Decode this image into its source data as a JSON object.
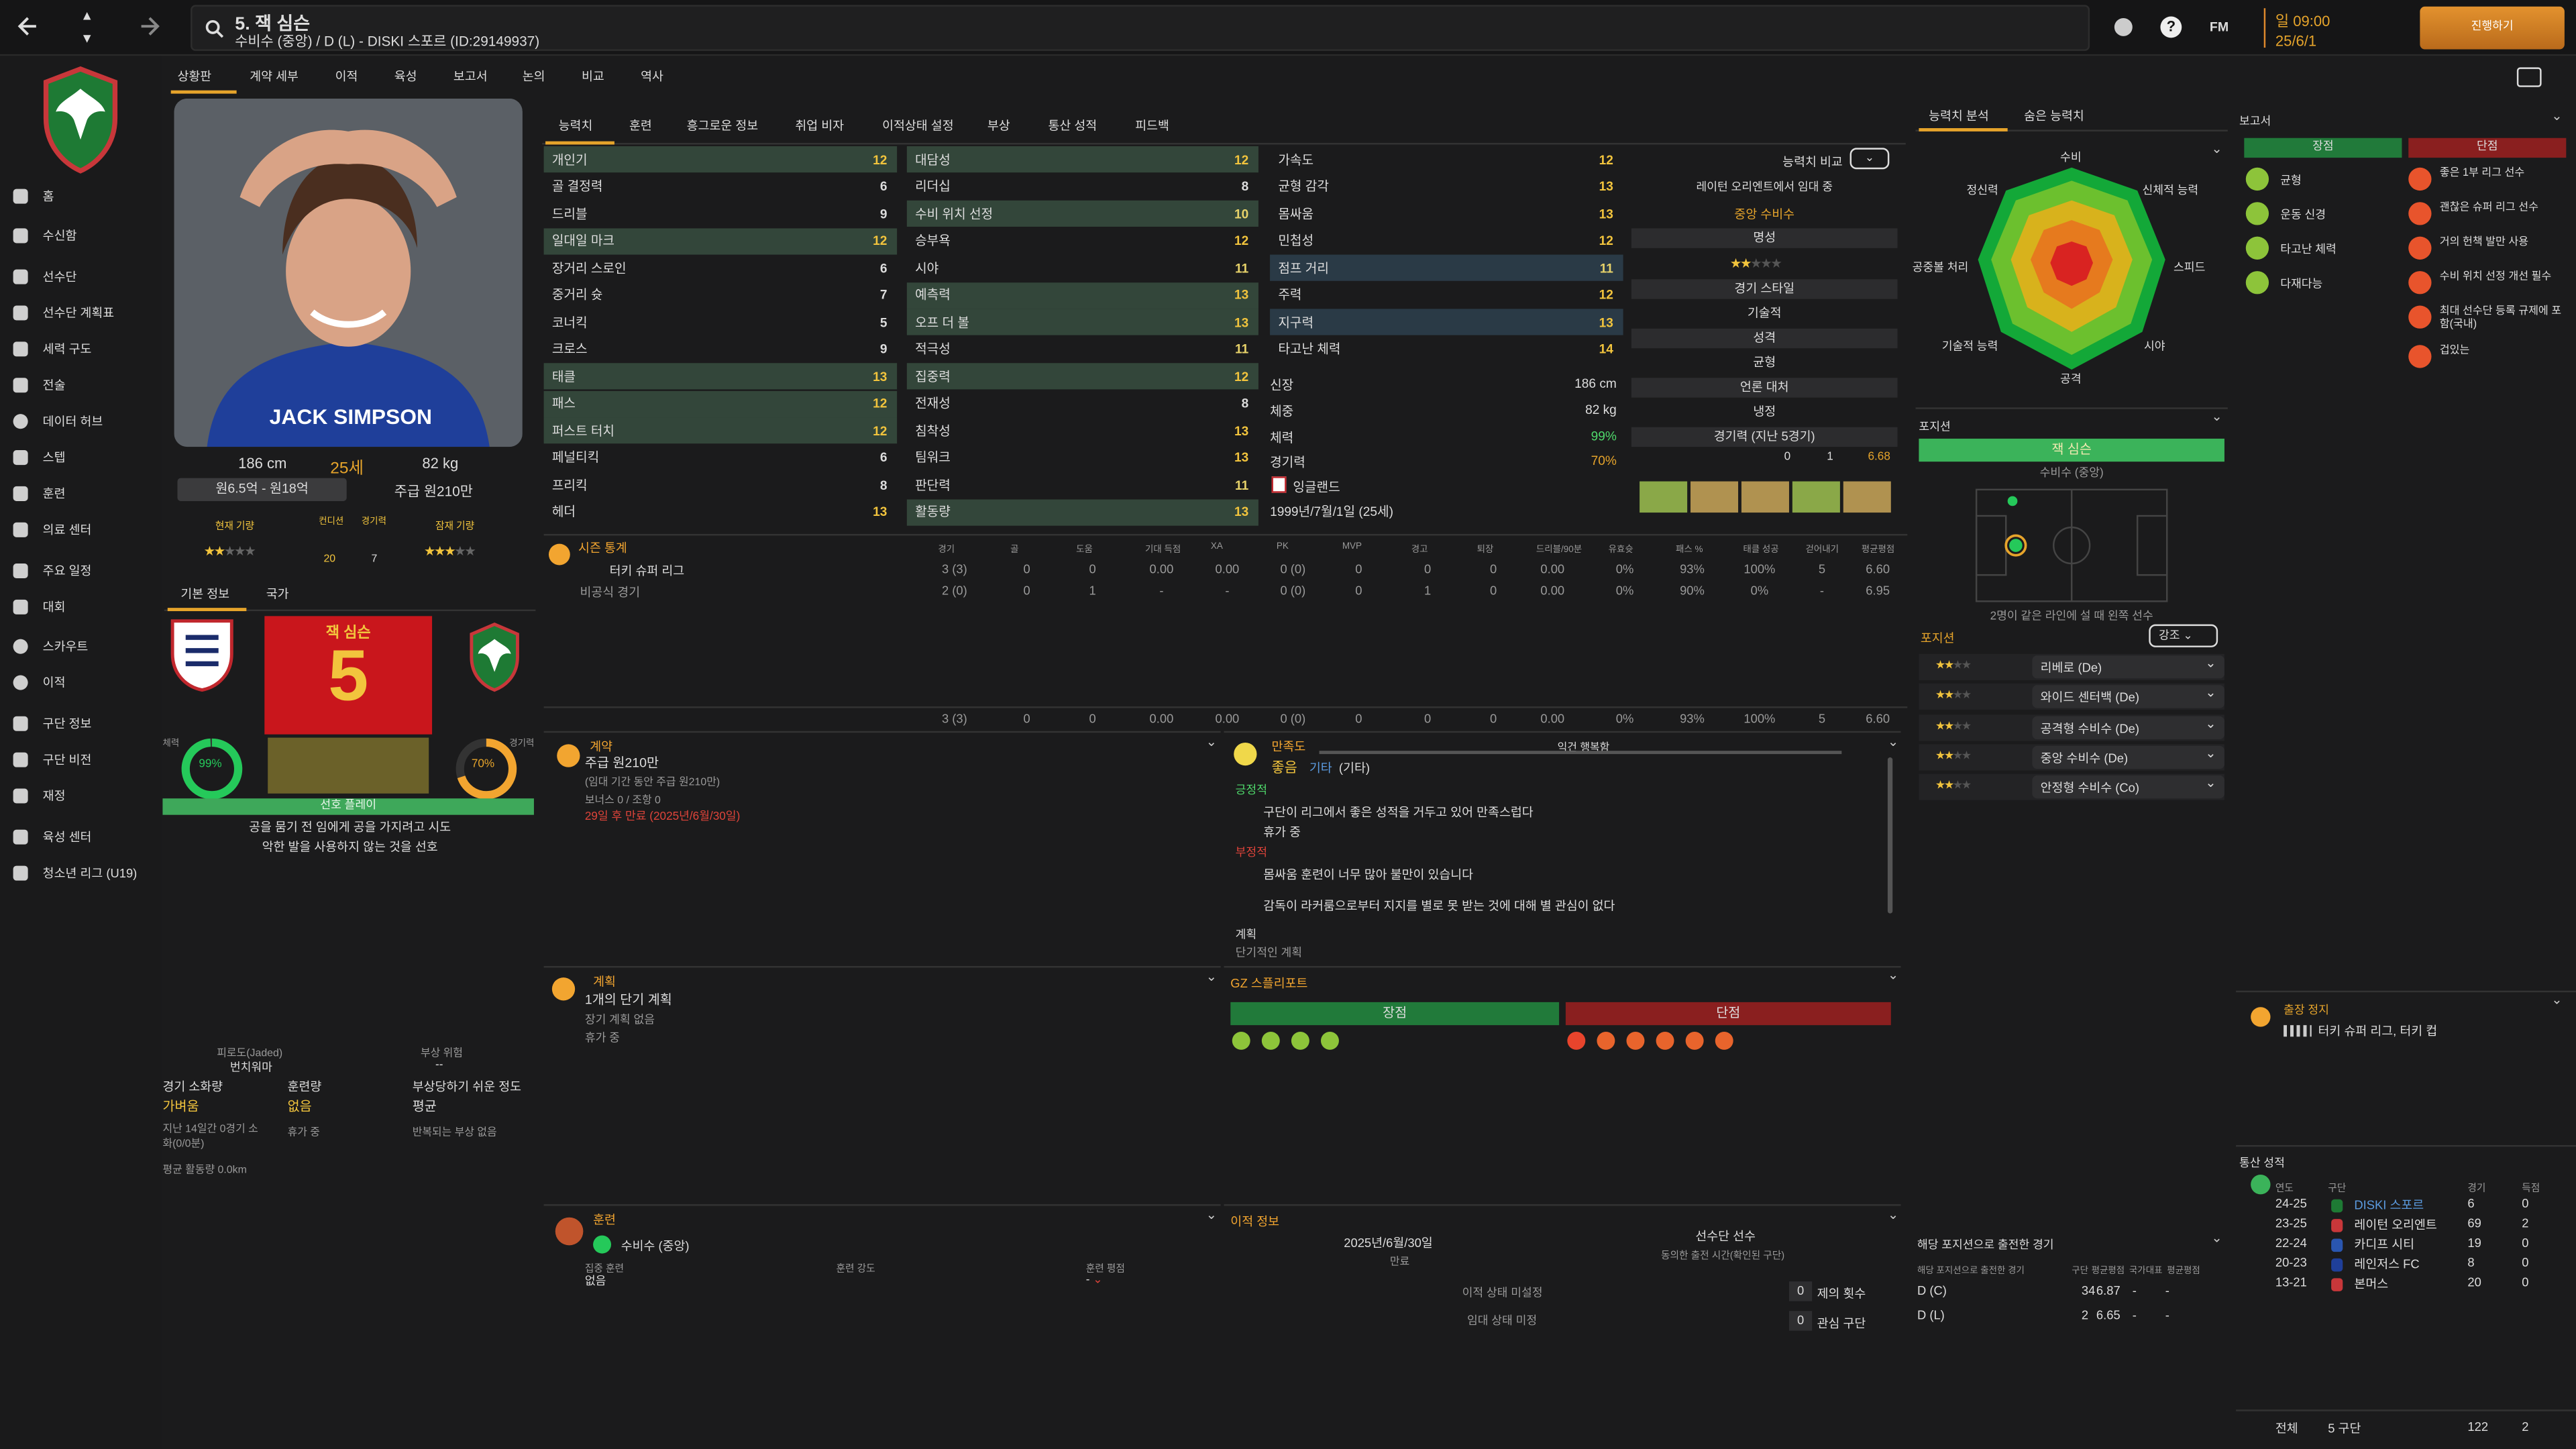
{
  "header": {
    "player_title": "5. 잭 심슨",
    "player_sub": "수비수 (중앙) / D (L) - DISKI 스포르 (ID:29149937)",
    "time": "일 09:00",
    "date": "25/6/1",
    "continue_label": "진행하기",
    "fm_label": "FM"
  },
  "sidebar": {
    "items": [
      {
        "label": "홈"
      },
      {
        "label": "수신함"
      },
      {
        "label": "선수단"
      },
      {
        "label": "선수단 계획표"
      },
      {
        "label": "세력 구도"
      },
      {
        "label": "전술"
      },
      {
        "label": "데이터 허브"
      },
      {
        "label": "스텝"
      },
      {
        "label": "훈련"
      },
      {
        "label": "의료 센터"
      },
      {
        "label": "주요 일정"
      },
      {
        "label": "대회"
      },
      {
        "label": "스카우트"
      },
      {
        "label": "이적"
      },
      {
        "label": "구단 정보"
      },
      {
        "label": "구단 비전"
      },
      {
        "label": "재정"
      },
      {
        "label": "육성 센터"
      },
      {
        "label": "청소년 리그 (U19)"
      }
    ]
  },
  "subnav": [
    "상황판",
    "계약 세부",
    "이적",
    "육성",
    "보고서",
    "논의",
    "비교",
    "역사"
  ],
  "profile": {
    "height": "186 cm",
    "age": "25세",
    "weight": "82 kg",
    "value": "원6.5억 - 원18억",
    "wage": "주급 원210만",
    "cur_ability": "현재 기량",
    "condition": "컨디션",
    "sharp": "경기력",
    "potential": "잠재 기량",
    "stat1": "20",
    "stat2": "7",
    "shirt_name": "JACK SIMPSON",
    "tabs": [
      "기본 정보",
      "국가"
    ],
    "kit_name": "잭 심슨",
    "kit_num": "5",
    "fitness": "99%",
    "match_sharp": "70%",
    "fit_label": "체력",
    "sharp_label": "경기력",
    "status_bar": "선호 플레이",
    "pref1": "공을 뭄기 전 임에게 공을 가지려고 시도",
    "pref2": "악한 발을 사용하지 않는 것을 선호",
    "jaded_label": "피로도(Jaded)",
    "jaded_val": "번치워마",
    "injury_label": "부상 위험",
    "injury_val": "--",
    "t1": "경기 소화량",
    "t1v": "가벼움",
    "t1s": "지난 14일간 0경기 소화(0/0분)",
    "t1s2": "평균 활동량 0.0km",
    "t2": "훈련량",
    "t2v": "없음",
    "t2s": "휴가 중",
    "t3": "부상당하기 쉬운 정도",
    "t3v": "평균",
    "t3s": "반복되는 부상 없음"
  },
  "tabs": [
    "능력치",
    "훈련",
    "흥그로운 정보",
    "취업 비자",
    "이적상태 설정",
    "부상",
    "통산 성적",
    "피드백"
  ],
  "attributes": {
    "col1": [
      [
        "개인기",
        "12"
      ],
      [
        "골 결정력",
        "6"
      ],
      [
        "드리블",
        "9"
      ],
      [
        "일대일 마크",
        "12"
      ],
      [
        "장거리 스로인",
        "6"
      ],
      [
        "중거리 슛",
        "7"
      ],
      [
        "코너킥",
        "5"
      ],
      [
        "크로스",
        "9"
      ],
      [
        "태클",
        "13"
      ],
      [
        "패스",
        "12"
      ],
      [
        "퍼스트 터치",
        "12"
      ],
      [
        "페널티킥",
        "6"
      ],
      [
        "프리킥",
        "8"
      ],
      [
        "헤더",
        "13"
      ]
    ],
    "col2": [
      [
        "대담성",
        "12"
      ],
      [
        "리더십",
        "8"
      ],
      [
        "수비 위치 선정",
        "10"
      ],
      [
        "승부욕",
        "12"
      ],
      [
        "시야",
        "11"
      ],
      [
        "예측력",
        "13"
      ],
      [
        "오프 더 볼",
        "13"
      ],
      [
        "적극성",
        "11"
      ],
      [
        "집중력",
        "12"
      ],
      [
        "전재성",
        "8"
      ],
      [
        "침착성",
        "13"
      ],
      [
        "팀워크",
        "13"
      ],
      [
        "판단력",
        "11"
      ],
      [
        "활동량",
        "13"
      ]
    ],
    "col3": [
      [
        "가속도",
        "12"
      ],
      [
        "균형 감각",
        "13"
      ],
      [
        "몸싸움",
        "13"
      ],
      [
        "민첩성",
        "12"
      ],
      [
        "점프 거리",
        "11"
      ],
      [
        "주력",
        "12"
      ],
      [
        "지구력",
        "13"
      ],
      [
        "타고난 체력",
        "14"
      ]
    ],
    "phys": [
      [
        "신장",
        "186 cm"
      ],
      [
        "체중",
        "82 kg"
      ],
      [
        "체력",
        "99%"
      ],
      [
        "경기력",
        "70%"
      ],
      [
        "",
        "잉글랜드"
      ],
      [
        "",
        "1999년/7월/1일 (25세)"
      ]
    ]
  },
  "compare": {
    "label": "능력치 비교",
    "team": "레이턴 오리엔트에서 임대 중",
    "role": "중앙 수비수",
    "rep": "명성",
    "style": "경기 스타일",
    "style_v": "기술적",
    "pers": "성격",
    "pers_v": "균형",
    "media": "언론 대처",
    "media_v": "냉정",
    "form": "경기력 (지난 5경기)",
    "form_rating": "6.68",
    "form_goals": "0",
    "form_assists": "1"
  },
  "season": {
    "title": "시즌 통계",
    "headers": [
      "경기",
      "골",
      "도움",
      "기대 득점",
      "XA",
      "PK",
      "MVP",
      "경고",
      "퇴장",
      "드리블/90분",
      "유효슛",
      "패스 %",
      "태클 성공",
      "걷어내기",
      "평균평점"
    ],
    "rows": [
      {
        "name": "터키 슈퍼 리그",
        "vals": [
          "3 (3)",
          "0",
          "0",
          "0.00",
          "0.00",
          "0 (0)",
          "0",
          "0",
          "0",
          "0.00",
          "0%",
          "93%",
          "100%",
          "5",
          "6.60"
        ]
      },
      {
        "name": "비공식 경기",
        "vals": [
          "2 (0)",
          "0",
          "1",
          "-",
          "-",
          "0 (0)",
          "0",
          "1",
          "0",
          "0.00",
          "0%",
          "90%",
          "0%",
          "-",
          "6.95"
        ]
      }
    ],
    "total": [
      "3 (3)",
      "0",
      "0",
      "0.00",
      "0.00",
      "0 (0)",
      "0",
      "0",
      "0",
      "0.00",
      "0%",
      "93%",
      "100%",
      "5",
      "6.60"
    ]
  },
  "contract": {
    "title": "계약",
    "wage": "주급 원210만",
    "note": "(임대 기간 동안 주급 원210만)",
    "bonus": "보너스 0 / 조항 0",
    "end": "29일 후 만료 (2025년/6월/30일)"
  },
  "happy": {
    "title": "만족도",
    "status": "좋음",
    "status2": "기타",
    "status3": "(기타)",
    "rel": "익건 행복함",
    "pos": "긍정적",
    "p1": "구단이 리그에서 좋은 성적을 거두고 있어 만족스럽다",
    "p2": "휴가 중",
    "neg": "부정적",
    "n1": "몸싸움 훈련이 너무 많아 불만이 있습니다",
    "n2": "감독이 라커룸으로부터 지지를 별로 못 받는 것에 대해 별 관심이 없다",
    "plan": "계획",
    "plan_v": "단기적인 계획"
  },
  "plans": {
    "title": "계획",
    "v": "1개의 단기 계획",
    "l1": "장기 계획 없음",
    "l2": "휴가 중"
  },
  "gz": {
    "title": "GZ 스플리포트",
    "pos": "장점",
    "neg": "단점"
  },
  "training": {
    "title": "훈련",
    "role": "수비수 (중앙)",
    "c1": "집중 훈련",
    "c1v": "없음",
    "c2": "훈련 강도",
    "c3": "훈련 평점"
  },
  "transfer": {
    "title": "이적 정보",
    "date": "2025년/6월/30일",
    "expiry": "만료",
    "squad": "선수단 선수",
    "squad_sub": "동의한 출전 시간(확인된 구단)",
    "s1": "이적 상태 미설정",
    "s2": "임대 상태 미정",
    "offers": "제의 횟수",
    "offers_n": "0",
    "interest": "관심 구단",
    "interest_n": "0"
  },
  "analysis": {
    "tabs": [
      "능력치 분석",
      "숨은 능력치"
    ],
    "labels": [
      "수비",
      "신체적 능력",
      "스피드",
      "시야",
      "공격",
      "기술적 능력",
      "공중볼 처리",
      "정신력"
    ]
  },
  "position": {
    "title": "포지션",
    "name": "잭 심슨",
    "role": "수비수 (중앙)",
    "note": "2명이 같은 라인에 설 때 왼쪽 선수",
    "roles_title": "포지션",
    "roles_sel": "강조",
    "roles": [
      "리베로 (De)",
      "와이드 센터백 (De)",
      "공격형 수비수 (De)",
      "중앙 수비수 (De)",
      "안정형 수비수 (Co)"
    ]
  },
  "apps": {
    "title": "해당 포지션으로 출전한 경기",
    "sub": "해당 포지션으로 출전한 경기",
    "h": [
      "구단",
      "평균평점",
      "국가대표",
      "평균평점"
    ],
    "rows": [
      [
        "D (C)",
        "34",
        "6.87",
        "-",
        "-"
      ],
      [
        "D (L)",
        "2",
        "6.65",
        "-",
        "-"
      ]
    ]
  },
  "report": {
    "title": "보고서",
    "pros": "장점",
    "cons": "단점",
    "p": [
      "균형",
      "운동 신경",
      "타고난 체력",
      "다재다능"
    ],
    "c": [
      "좋은 1부 리그 선수",
      "괜찮은 슈퍼 리그 선수",
      "거의 헌책 발만 사용",
      "수비 위치 선정 개선 필수",
      "최대 선수단 등록 규제에 포함(국내)",
      "겁있는"
    ]
  },
  "ban": {
    "title": "출장 정지",
    "v": "터키 슈퍼 리그, 터키 컵"
  },
  "career": {
    "title": "통산 성적",
    "h": [
      "연도",
      "구단",
      "경기",
      "득점"
    ],
    "rows": [
      [
        "24-25",
        "DISKI 스포르",
        "6",
        "0"
      ],
      [
        "23-25",
        "레이턴 오리엔트",
        "69",
        "2"
      ],
      [
        "22-24",
        "카디프 시티",
        "19",
        "0"
      ],
      [
        "20-23",
        "레인저스 FC",
        "8",
        "0"
      ],
      [
        "13-21",
        "본머스",
        "20",
        "0"
      ]
    ],
    "total": "전체",
    "total_clubs": "5 구단",
    "total_apps": "122",
    "total_goals": "2"
  }
}
